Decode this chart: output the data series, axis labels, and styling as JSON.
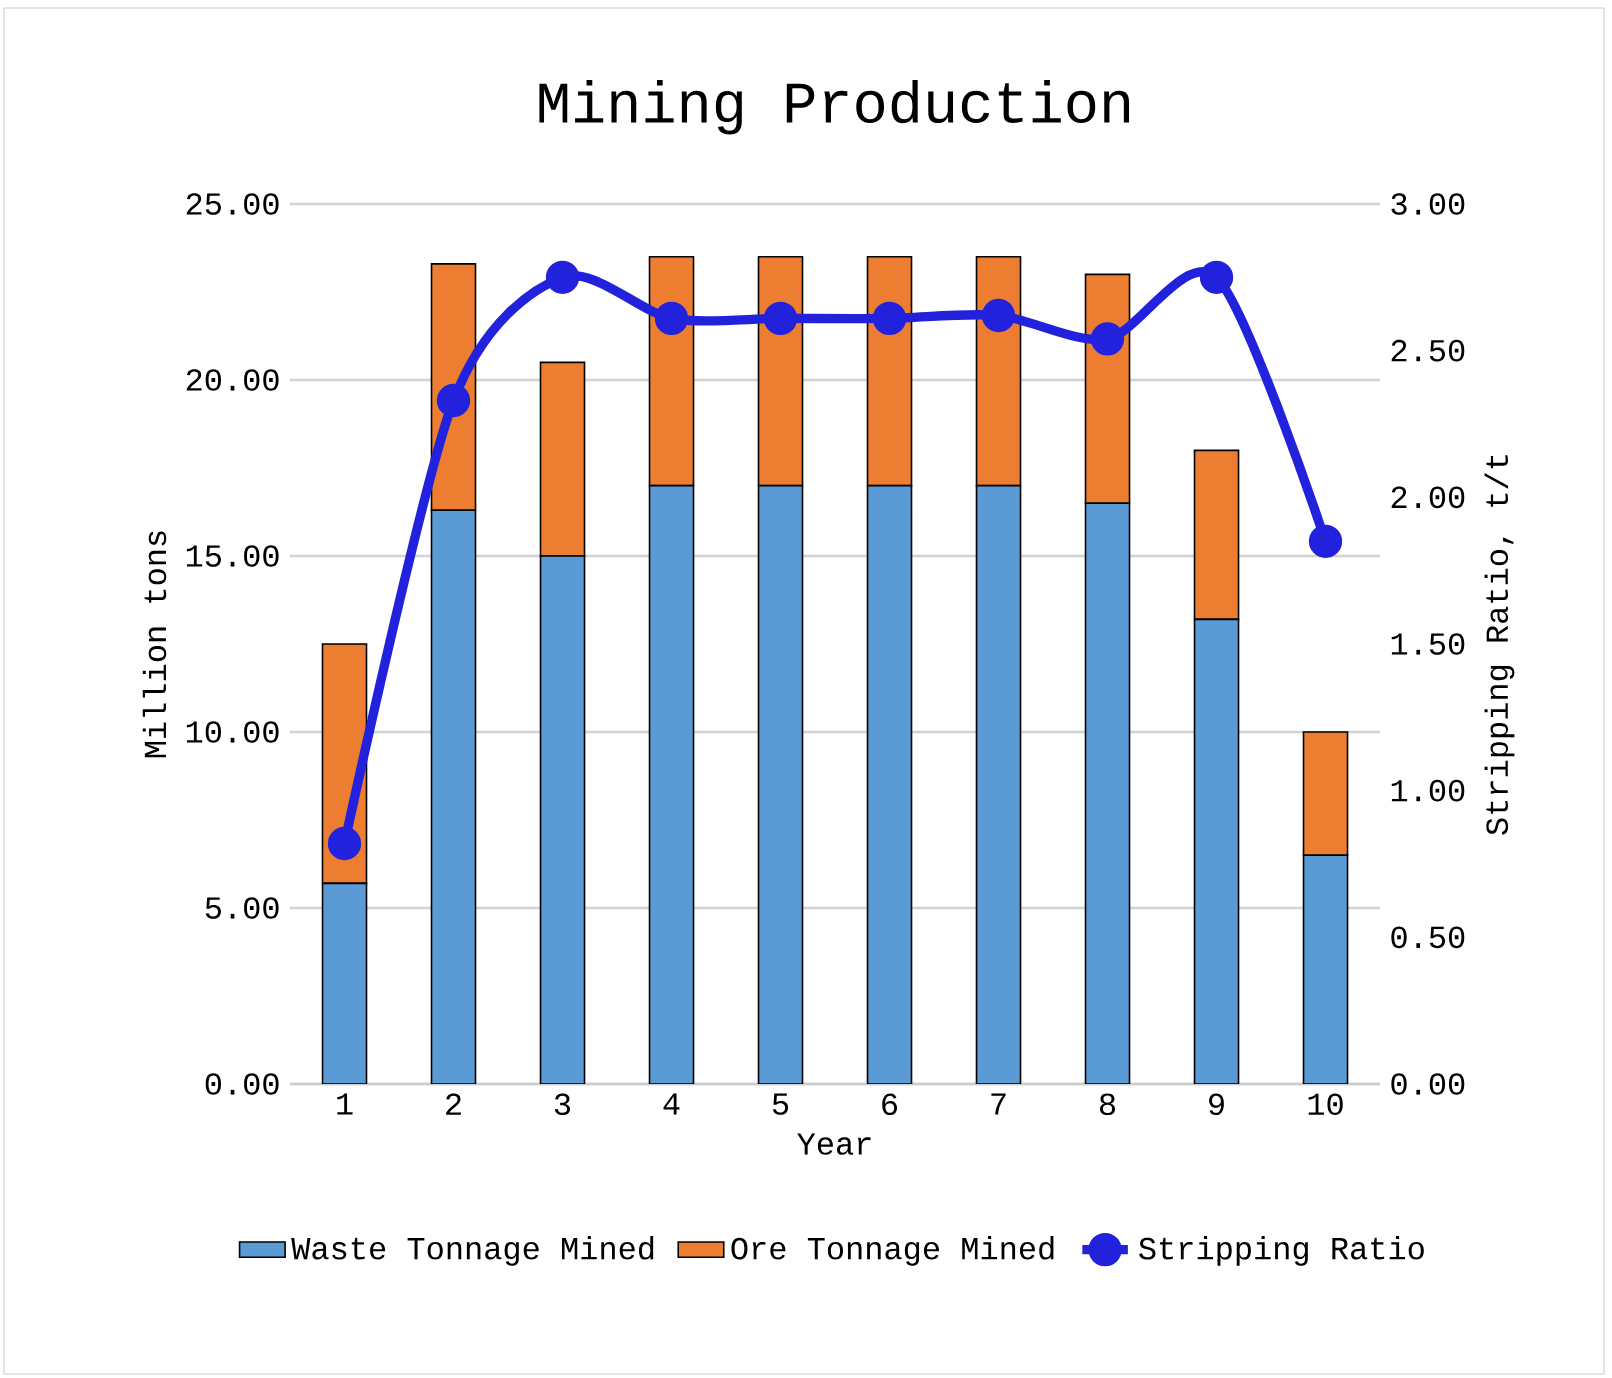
{
  "chart_data": {
    "type": "bar",
    "title": "Mining Production",
    "xlabel": "Year",
    "ylabel": "Million tons",
    "y2label": "Stripping Ratio, t/t",
    "categories": [
      "1",
      "2",
      "3",
      "4",
      "5",
      "6",
      "7",
      "8",
      "9",
      "10"
    ],
    "stacked": true,
    "grid": "y",
    "legend": "bottom",
    "marker": "circle",
    "series": [
      {
        "name": "Waste Tonnage Mined",
        "color": "#5b9bd5",
        "values": [
          5.7,
          16.3,
          15.0,
          17.0,
          17.0,
          17.0,
          17.0,
          16.5,
          13.2,
          6.5
        ]
      },
      {
        "name": "Ore Tonnage Mined",
        "color": "#ed7d31",
        "values": [
          6.8,
          7.0,
          5.5,
          6.5,
          6.5,
          6.5,
          6.5,
          6.5,
          4.8,
          3.5
        ]
      },
      {
        "name": "Stripping Ratio",
        "type": "line",
        "axis": "y2",
        "color": "#2222dd",
        "values": [
          0.82,
          2.33,
          2.75,
          2.61,
          2.61,
          2.61,
          2.62,
          2.54,
          2.75,
          1.85
        ]
      }
    ],
    "ylim": [
      0,
      25
    ],
    "yticks": [
      {
        "value": 0,
        "label": "0.00"
      },
      {
        "value": 5,
        "label": "5.00"
      },
      {
        "value": 10,
        "label": "10.00"
      },
      {
        "value": 15,
        "label": "15.00"
      },
      {
        "value": 20,
        "label": "20.00"
      },
      {
        "value": 25,
        "label": "25.00"
      }
    ],
    "y2lim": [
      0,
      3
    ],
    "y2ticks": [
      {
        "value": 0,
        "label": "0.00"
      },
      {
        "value": 0.5,
        "label": "0.50"
      },
      {
        "value": 1,
        "label": "1.00"
      },
      {
        "value": 1.5,
        "label": "1.50"
      },
      {
        "value": 2,
        "label": "2.00"
      },
      {
        "value": 2.5,
        "label": "2.50"
      },
      {
        "value": 3,
        "label": "3.00"
      }
    ]
  }
}
